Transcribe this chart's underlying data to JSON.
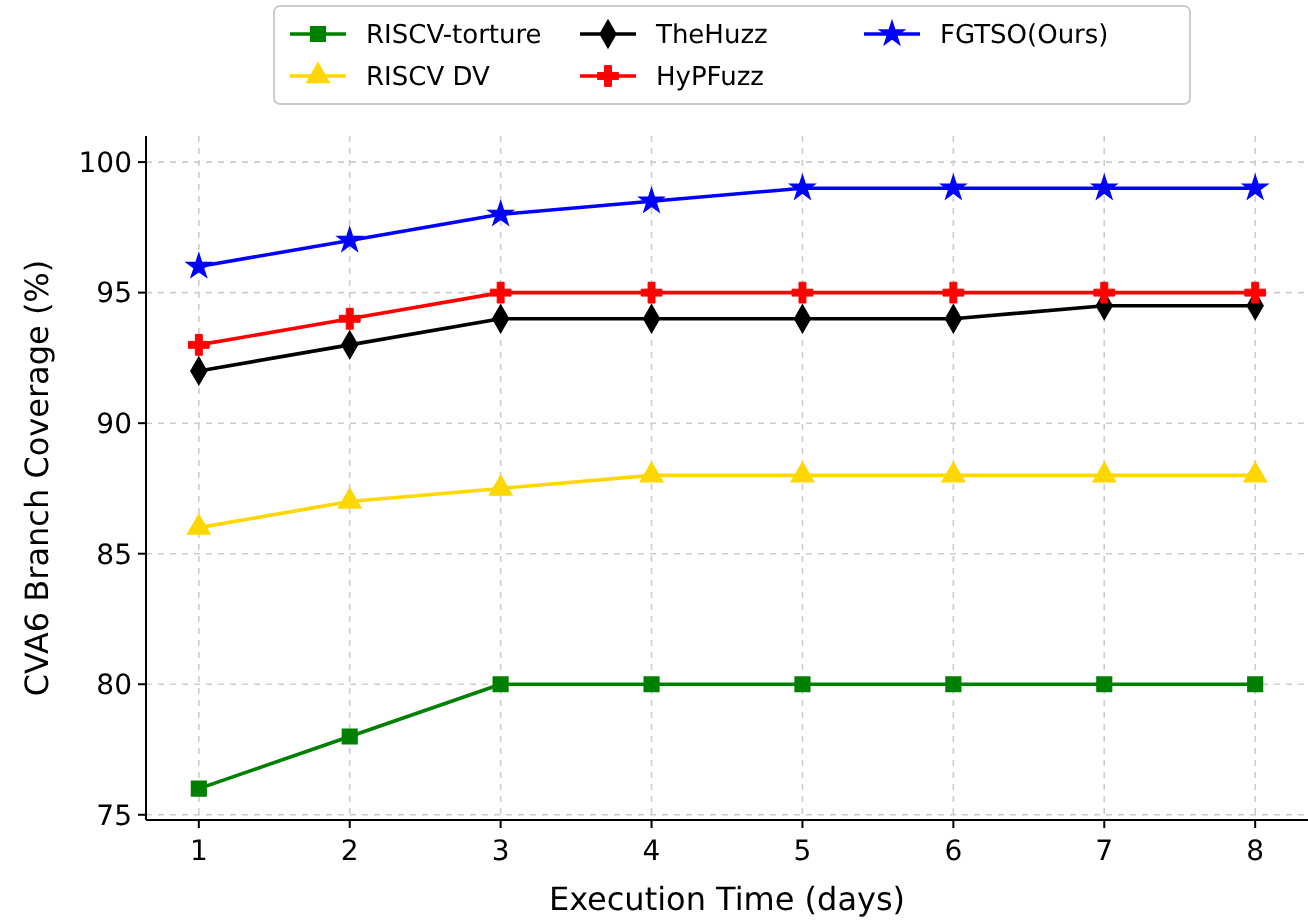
{
  "chart_data": {
    "type": "line",
    "xlabel": "Execution Time (days)",
    "ylabel": "CVA6 Branch Coverage (%)",
    "x": [
      1,
      2,
      3,
      4,
      5,
      6,
      7,
      8
    ],
    "xlim": [
      0.65,
      8.35
    ],
    "xticks": [
      1,
      2,
      3,
      4,
      5,
      6,
      7,
      8
    ],
    "ylim": [
      74.8,
      101
    ],
    "yticks": [
      75,
      80,
      85,
      90,
      95,
      100
    ],
    "grid": true,
    "legend": "top",
    "line_style": "solid",
    "series": [
      {
        "name": "RISCV-torture",
        "color": "#008000",
        "marker": "square",
        "values": [
          76,
          78,
          80,
          80,
          80,
          80,
          80,
          80
        ]
      },
      {
        "name": "RISCV DV",
        "color": "#ffd700",
        "marker": "triangle",
        "values": [
          86,
          87,
          87.5,
          88,
          88,
          88,
          88,
          88
        ]
      },
      {
        "name": "TheHuzz",
        "color": "#000000",
        "marker": "diamond",
        "values": [
          92,
          93,
          94,
          94,
          94,
          94,
          94.5,
          94.5
        ]
      },
      {
        "name": "HyPFuzz",
        "color": "#ff0000",
        "marker": "cross",
        "values": [
          93,
          94,
          95,
          95,
          95,
          95,
          95,
          95
        ]
      },
      {
        "name": "FGTSO(Ours)",
        "color": "#0000ff",
        "marker": "star",
        "values": [
          96,
          97,
          98,
          98.5,
          99,
          99,
          99,
          99
        ]
      }
    ]
  }
}
